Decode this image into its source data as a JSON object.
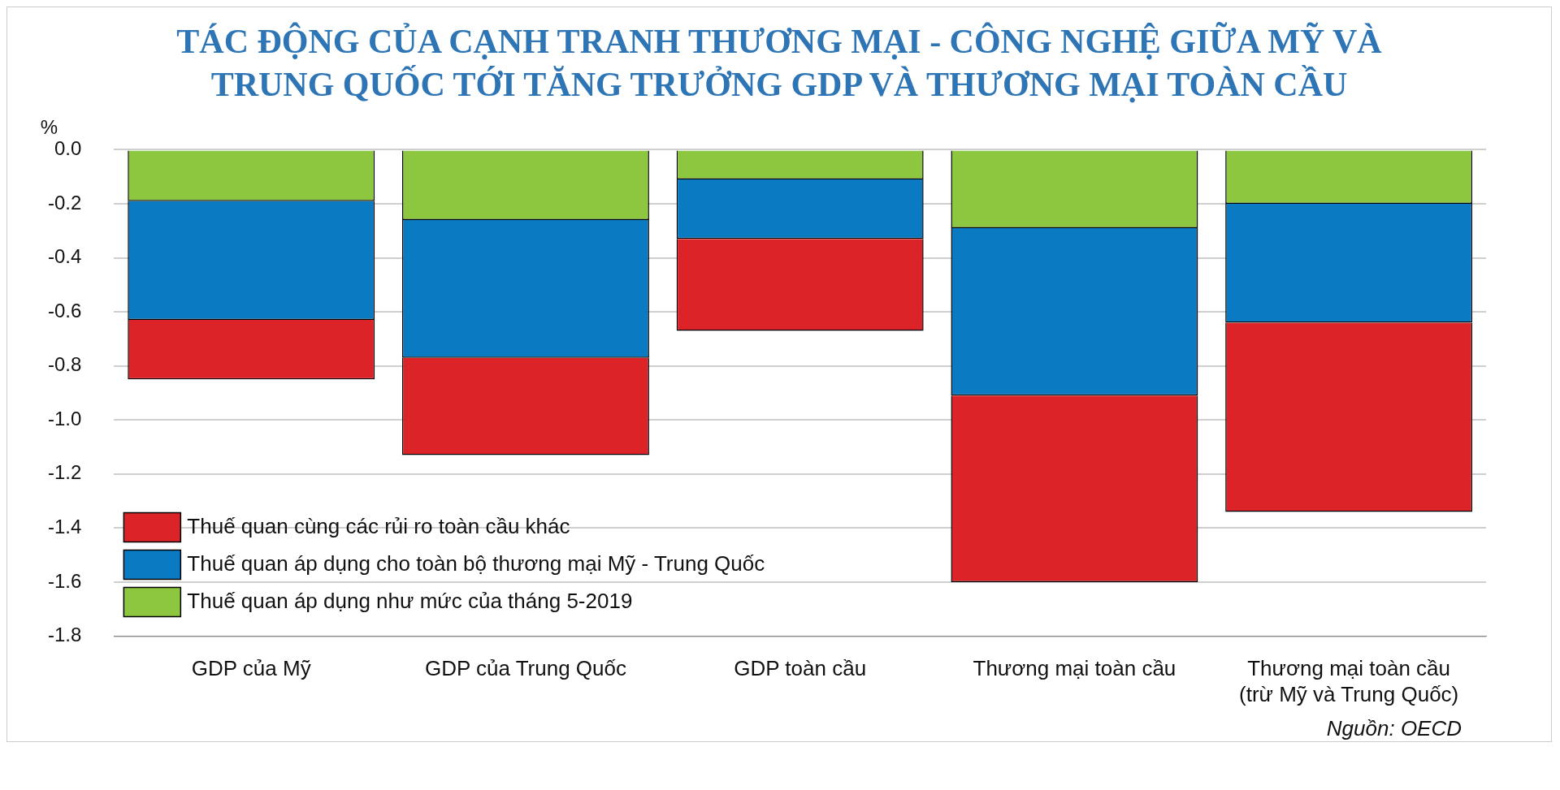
{
  "chart_data": {
    "type": "bar",
    "title": "TÁC ĐỘNG CỦA CẠNH TRANH THƯƠNG MẠI - CÔNG NGHỆ GIỮA MỸ VÀ TRUNG QUỐC TỚI TĂNG TRƯỞNG GDP VÀ THƯƠNG MẠI TOÀN CẦU",
    "ylabel": "%",
    "categories": [
      "GDP của Mỹ",
      "GDP của Trung Quốc",
      "GDP toàn cầu",
      "Thương mại toàn cầu",
      "Thương mại toàn cầu (trừ Mỹ và Trung Quốc)"
    ],
    "stacked": true,
    "series": [
      {
        "name": "Thuế quan áp dụng như mức của tháng 5-2019",
        "color": "#8dc63f",
        "values": [
          -0.19,
          -0.26,
          -0.11,
          -0.29,
          -0.2
        ]
      },
      {
        "name": "Thuế quan áp dụng cho toàn bộ thương mại Mỹ - Trung Quốc",
        "color": "#0a7bc2",
        "values": [
          -0.44,
          -0.51,
          -0.22,
          -0.62,
          -0.44
        ]
      },
      {
        "name": "Thuế quan cùng các rủi ro toàn cầu khác",
        "color": "#dc2327",
        "values": [
          -0.22,
          -0.36,
          -0.34,
          -0.69,
          -0.7
        ]
      }
    ],
    "ylim": [
      -1.8,
      0
    ],
    "yticks": [
      -1.8,
      -1.6,
      -1.4,
      -1.2,
      {
        "value": -1,
        "label": "-1.0"
      },
      -0.8,
      -0.6,
      -0.4,
      -0.2,
      {
        "value": 0,
        "label": "0.0"
      }
    ],
    "grid": "y",
    "legend": "bottom left",
    "annotations": [
      "Nguồn: OECD"
    ]
  }
}
